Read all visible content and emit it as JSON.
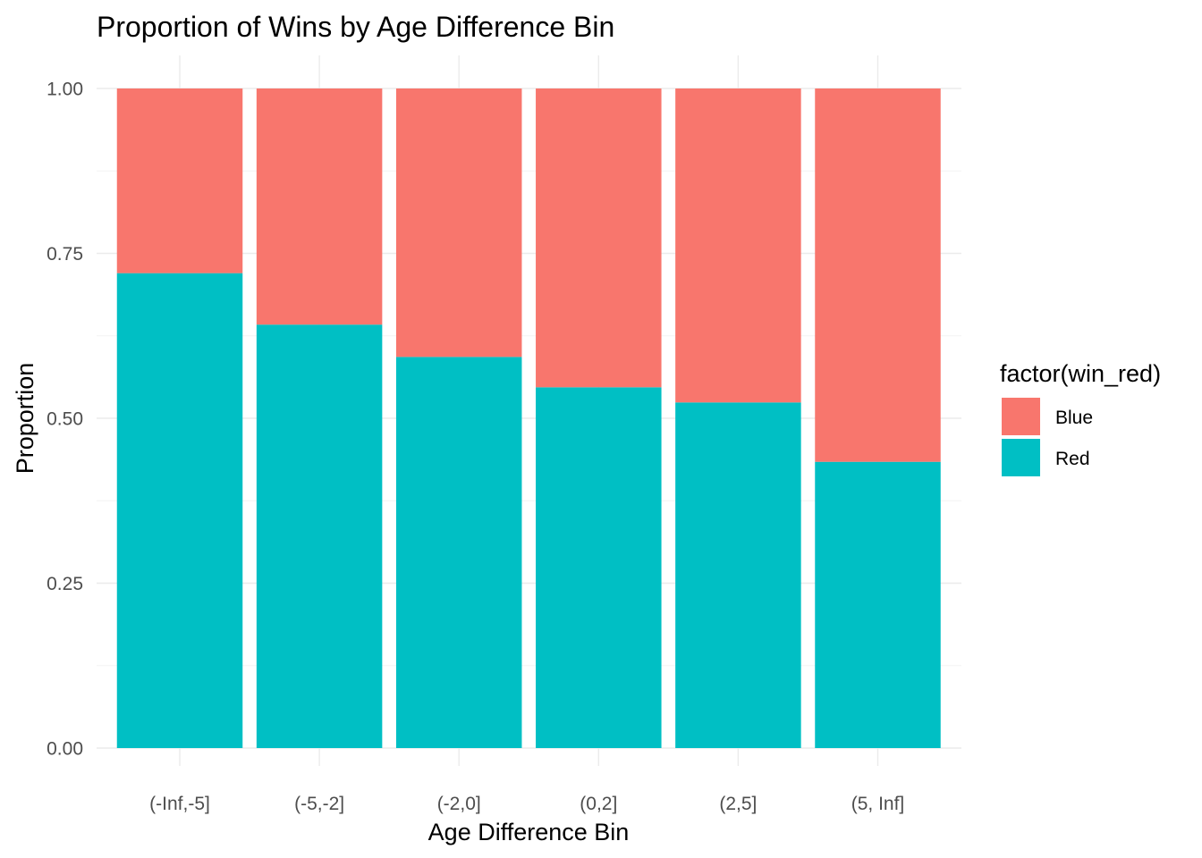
{
  "chart_data": {
    "type": "bar",
    "stacked": true,
    "title": "Proportion of Wins by Age Difference Bin",
    "xlabel": "Age Difference Bin",
    "ylabel": "Proportion",
    "categories": [
      "(-Inf,-5]",
      "(-5,-2]",
      "(-2,0]",
      "(0,2]",
      "(2,5]",
      "(5, Inf]"
    ],
    "series": [
      {
        "name": "Red",
        "color": "#00BFC4",
        "values": [
          0.72,
          0.642,
          0.593,
          0.547,
          0.524,
          0.434
        ]
      },
      {
        "name": "Blue",
        "color": "#F8766D",
        "values": [
          0.28,
          0.358,
          0.407,
          0.453,
          0.476,
          0.566
        ]
      }
    ],
    "ylim": [
      0,
      1
    ],
    "yticks": [
      "0.00",
      "0.25",
      "0.50",
      "0.75",
      "1.00"
    ],
    "legend": {
      "title": "factor(win_red)",
      "placement": "right",
      "entries": [
        {
          "label": "Blue",
          "color": "#F8766D"
        },
        {
          "label": "Red",
          "color": "#00BFC4"
        }
      ]
    },
    "grid": true
  }
}
